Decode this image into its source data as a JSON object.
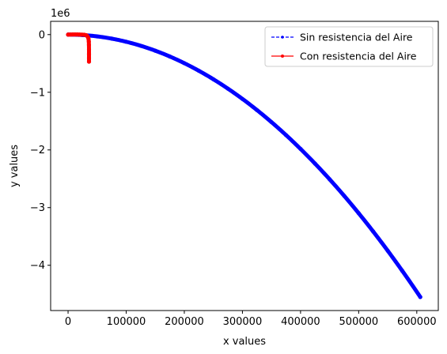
{
  "chart_data": {
    "type": "line",
    "title": "",
    "xlabel": "x values",
    "ylabel": "y values",
    "y_offset_label": "1e6",
    "xlim": [
      -30000,
      637000
    ],
    "ylim": [
      -4.785,
      0.23
    ],
    "x_ticks": [
      0,
      100000,
      200000,
      300000,
      400000,
      500000,
      600000
    ],
    "x_tick_labels": [
      "0",
      "100000",
      "200000",
      "300000",
      "400000",
      "500000",
      "600000"
    ],
    "y_ticks": [
      0,
      -1,
      -2,
      -3,
      -4
    ],
    "y_tick_labels": [
      "0",
      "−1",
      "−2",
      "−3",
      "−4"
    ],
    "grid": false,
    "legend_position": "top-right",
    "series": [
      {
        "name": "Sin resistencia del Aire",
        "color": "#0000ff",
        "style": "dashed",
        "marker": "point",
        "x_max": 606000,
        "y_min": -4.55,
        "x": [
          0,
          25000,
          50000,
          75000,
          100000,
          125000,
          150000,
          175000,
          200000,
          225000,
          250000,
          275000,
          300000,
          325000,
          350000,
          375000,
          400000,
          425000,
          450000,
          475000,
          500000,
          525000,
          550000,
          575000,
          606000
        ],
        "y": [
          0,
          -0.0077,
          -0.031,
          -0.0696,
          -0.1239,
          -0.1936,
          -0.2788,
          -0.3794,
          -0.4956,
          -0.6273,
          -0.7744,
          -0.9371,
          -1.1152,
          -1.3088,
          -1.5179,
          -1.7424,
          -1.9825,
          -2.238,
          -2.509,
          -2.7955,
          -3.0975,
          -3.415,
          -3.7479,
          -4.0963,
          -4.55
        ]
      },
      {
        "name": "Con resistencia del Aire",
        "color": "#ff0000",
        "style": "solid",
        "marker": "point",
        "x": [
          0,
          4000,
          8000,
          12000,
          16000,
          20000,
          24000,
          28000,
          31000,
          33000,
          34500,
          35300,
          35700,
          35900,
          36000,
          36000,
          36000,
          36000
        ],
        "y": [
          0,
          0.0012,
          0.002,
          0.0022,
          0.0018,
          0.0008,
          -0.0008,
          -0.003,
          -0.01,
          -0.025,
          -0.05,
          -0.08,
          -0.12,
          -0.18,
          -0.26,
          -0.34,
          -0.41,
          -0.47
        ]
      }
    ]
  }
}
